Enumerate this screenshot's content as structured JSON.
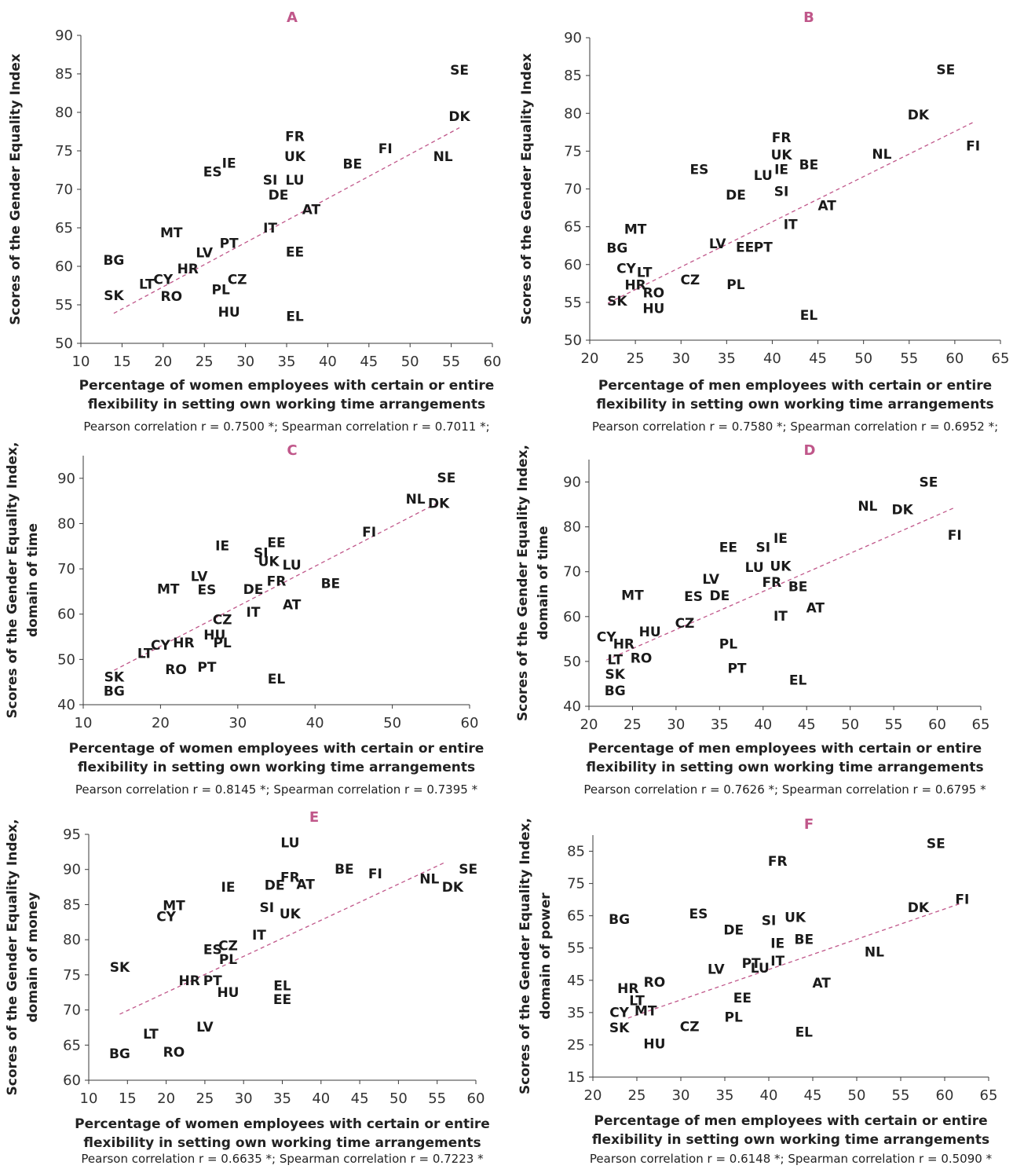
{
  "colors": {
    "panel_title": "#c0578a",
    "trendline": "#c0578a"
  },
  "chart_data": [
    {
      "panel": "A",
      "type": "scatter",
      "xlabel": [
        "Percentage of women employees with certain or entire",
        "flexibility in setting own working time arrangements"
      ],
      "ylabel": [
        "Scores of the Gender Equality Index"
      ],
      "correlation": "Pearson correlation r = 0.7500 *; Spearman correlation r = 0.7011 *;",
      "xlim": [
        10,
        60
      ],
      "xstep": 5,
      "ylim": [
        50,
        90
      ],
      "ystep": 5,
      "trend": {
        "x": [
          14,
          56
        ],
        "y": [
          53.9,
          78.0
        ]
      },
      "points": [
        {
          "label": "SE",
          "x": 56,
          "y": 85.5
        },
        {
          "label": "DK",
          "x": 56,
          "y": 79.5
        },
        {
          "label": "NL",
          "x": 54,
          "y": 74.3
        },
        {
          "label": "FI",
          "x": 47,
          "y": 75.3
        },
        {
          "label": "BE",
          "x": 43,
          "y": 73.3
        },
        {
          "label": "FR",
          "x": 36,
          "y": 76.9
        },
        {
          "label": "UK",
          "x": 36,
          "y": 74.3
        },
        {
          "label": "LU",
          "x": 36,
          "y": 71.2
        },
        {
          "label": "SI",
          "x": 33,
          "y": 71.2
        },
        {
          "label": "DE",
          "x": 34,
          "y": 69.3
        },
        {
          "label": "AT",
          "x": 38,
          "y": 67.4
        },
        {
          "label": "IT",
          "x": 33,
          "y": 65.0
        },
        {
          "label": "IE",
          "x": 28,
          "y": 73.4
        },
        {
          "label": "ES",
          "x": 26,
          "y": 72.3
        },
        {
          "label": "MT",
          "x": 21,
          "y": 64.4
        },
        {
          "label": "BG",
          "x": 14,
          "y": 60.8
        },
        {
          "label": "PT",
          "x": 28,
          "y": 63.0
        },
        {
          "label": "LV",
          "x": 25,
          "y": 61.8
        },
        {
          "label": "EE",
          "x": 36,
          "y": 61.9
        },
        {
          "label": "HR",
          "x": 23,
          "y": 59.7
        },
        {
          "label": "CY",
          "x": 20,
          "y": 58.3
        },
        {
          "label": "LT",
          "x": 18,
          "y": 57.7
        },
        {
          "label": "CZ",
          "x": 29,
          "y": 58.3
        },
        {
          "label": "PL",
          "x": 27,
          "y": 57.0
        },
        {
          "label": "SK",
          "x": 14,
          "y": 56.2
        },
        {
          "label": "RO",
          "x": 21,
          "y": 56.1
        },
        {
          "label": "HU",
          "x": 28,
          "y": 54.1
        },
        {
          "label": "EL",
          "x": 36,
          "y": 53.5
        }
      ]
    },
    {
      "panel": "B",
      "type": "scatter",
      "xlabel": [
        "Percentage of men employees with certain or entire",
        "flexibility in setting own working time arrangements"
      ],
      "ylabel": [
        "Scores of the Gender Equality Index"
      ],
      "correlation": "Pearson correlation r = 0.7580 *; Spearman correlation r = 0.6952 *;",
      "xlim": [
        20,
        65
      ],
      "xstep": 5,
      "ylim": [
        50,
        90
      ],
      "ystep": 5,
      "trend": {
        "x": [
          22,
          62
        ],
        "y": [
          54.9,
          78.8
        ]
      },
      "points": [
        {
          "label": "SE",
          "x": 59,
          "y": 85.8
        },
        {
          "label": "DK",
          "x": 56,
          "y": 79.8
        },
        {
          "label": "FI",
          "x": 62,
          "y": 75.7
        },
        {
          "label": "NL",
          "x": 52,
          "y": 74.6
        },
        {
          "label": "FR",
          "x": 41,
          "y": 76.8
        },
        {
          "label": "UK",
          "x": 41,
          "y": 74.5
        },
        {
          "label": "BE",
          "x": 44,
          "y": 73.2
        },
        {
          "label": "IE",
          "x": 41,
          "y": 72.6
        },
        {
          "label": "LU",
          "x": 39,
          "y": 71.8
        },
        {
          "label": "ES",
          "x": 32,
          "y": 72.6
        },
        {
          "label": "DE",
          "x": 36,
          "y": 69.2
        },
        {
          "label": "SI",
          "x": 41,
          "y": 69.7
        },
        {
          "label": "AT",
          "x": 46,
          "y": 67.8
        },
        {
          "label": "IT",
          "x": 42,
          "y": 65.3
        },
        {
          "label": "MT",
          "x": 25,
          "y": 64.7
        },
        {
          "label": "LV",
          "x": 34,
          "y": 62.8
        },
        {
          "label": "EE",
          "x": 37,
          "y": 62.3
        },
        {
          "label": "PT",
          "x": 39,
          "y": 62.3
        },
        {
          "label": "BG",
          "x": 23,
          "y": 62.2
        },
        {
          "label": "CY",
          "x": 24,
          "y": 59.5
        },
        {
          "label": "LT",
          "x": 26,
          "y": 59.0
        },
        {
          "label": "CZ",
          "x": 31,
          "y": 58.0
        },
        {
          "label": "HR",
          "x": 25,
          "y": 57.3
        },
        {
          "label": "PL",
          "x": 36,
          "y": 57.4
        },
        {
          "label": "RO",
          "x": 27,
          "y": 56.3
        },
        {
          "label": "SK",
          "x": 23,
          "y": 55.2
        },
        {
          "label": "HU",
          "x": 27,
          "y": 54.2
        },
        {
          "label": "EL",
          "x": 44,
          "y": 53.3
        }
      ]
    },
    {
      "panel": "C",
      "type": "scatter",
      "xlabel": [
        "Percentage of women employees with certain or entire",
        "flexibility in setting own working time arrangements"
      ],
      "ylabel": [
        "Scores of the Gender Equality Index,",
        "domain of time"
      ],
      "correlation": "Pearson correlation r = 0.8145 *; Spearman correlation r = 0.7395 *",
      "xlim": [
        10,
        60
      ],
      "xstep": 10,
      "ylim": [
        40,
        95
      ],
      "ystep": 10,
      "trend": {
        "x": [
          14,
          56
        ],
        "y": [
          47.6,
          84.7
        ]
      },
      "points": [
        {
          "label": "SE",
          "x": 57,
          "y": 90.1
        },
        {
          "label": "NL",
          "x": 53,
          "y": 85.5
        },
        {
          "label": "DK",
          "x": 56,
          "y": 84.5
        },
        {
          "label": "FI",
          "x": 47,
          "y": 78.2
        },
        {
          "label": "IE",
          "x": 28,
          "y": 75.1
        },
        {
          "label": "SI",
          "x": 33,
          "y": 73.6
        },
        {
          "label": "EE",
          "x": 35,
          "y": 75.8
        },
        {
          "label": "UK",
          "x": 34,
          "y": 71.7
        },
        {
          "label": "LU",
          "x": 37,
          "y": 70.9
        },
        {
          "label": "LV",
          "x": 25,
          "y": 68.4
        },
        {
          "label": "MT",
          "x": 21,
          "y": 65.6
        },
        {
          "label": "ES",
          "x": 26,
          "y": 65.4
        },
        {
          "label": "DE",
          "x": 32,
          "y": 65.5
        },
        {
          "label": "FR",
          "x": 35,
          "y": 67.3
        },
        {
          "label": "BE",
          "x": 42,
          "y": 66.8
        },
        {
          "label": "AT",
          "x": 37,
          "y": 62.1
        },
        {
          "label": "IT",
          "x": 32,
          "y": 60.5
        },
        {
          "label": "CZ",
          "x": 28,
          "y": 58.8
        },
        {
          "label": "HU",
          "x": 27,
          "y": 55.4
        },
        {
          "label": "PL",
          "x": 28,
          "y": 53.7
        },
        {
          "label": "HR",
          "x": 23,
          "y": 53.7
        },
        {
          "label": "CY",
          "x": 20,
          "y": 53.2
        },
        {
          "label": "LT",
          "x": 18,
          "y": 51.4
        },
        {
          "label": "RO",
          "x": 22,
          "y": 47.8
        },
        {
          "label": "PT",
          "x": 26,
          "y": 48.3
        },
        {
          "label": "SK",
          "x": 14,
          "y": 46.2
        },
        {
          "label": "BG",
          "x": 14,
          "y": 43.0
        },
        {
          "label": "EL",
          "x": 35,
          "y": 45.7
        }
      ]
    },
    {
      "panel": "D",
      "type": "scatter",
      "xlabel": [
        "Percentage of men employees with certain or entire",
        "flexibility in setting own working time arrangements"
      ],
      "ylabel": [
        "Scores of the Gender Equality Index,",
        "domain of time"
      ],
      "correlation": "Pearson correlation r = 0.7626 *; Spearman correlation r = 0.6795 *",
      "xlim": [
        20,
        65
      ],
      "xstep": 5,
      "ylim": [
        40,
        95
      ],
      "ystep": 10,
      "trend": {
        "x": [
          22,
          62
        ],
        "y": [
          50.3,
          84.3
        ]
      },
      "points": [
        {
          "label": "SE",
          "x": 59,
          "y": 90.0
        },
        {
          "label": "NL",
          "x": 52,
          "y": 84.7
        },
        {
          "label": "DK",
          "x": 56,
          "y": 83.9
        },
        {
          "label": "FI",
          "x": 62,
          "y": 78.2
        },
        {
          "label": "EE",
          "x": 36,
          "y": 75.5
        },
        {
          "label": "SI",
          "x": 40,
          "y": 75.5
        },
        {
          "label": "IE",
          "x": 42,
          "y": 77.5
        },
        {
          "label": "LU",
          "x": 39,
          "y": 71.0
        },
        {
          "label": "UK",
          "x": 42,
          "y": 71.3
        },
        {
          "label": "LV",
          "x": 34,
          "y": 68.4
        },
        {
          "label": "FR",
          "x": 41,
          "y": 67.7
        },
        {
          "label": "BE",
          "x": 44,
          "y": 66.7
        },
        {
          "label": "MT",
          "x": 25,
          "y": 64.8
        },
        {
          "label": "ES",
          "x": 32,
          "y": 64.5
        },
        {
          "label": "DE",
          "x": 35,
          "y": 64.7
        },
        {
          "label": "AT",
          "x": 46,
          "y": 62.0
        },
        {
          "label": "IT",
          "x": 42,
          "y": 60.1
        },
        {
          "label": "CZ",
          "x": 31,
          "y": 58.6
        },
        {
          "label": "HU",
          "x": 27,
          "y": 56.6
        },
        {
          "label": "CY",
          "x": 22,
          "y": 55.5
        },
        {
          "label": "HR",
          "x": 24,
          "y": 53.9
        },
        {
          "label": "PL",
          "x": 36,
          "y": 53.9
        },
        {
          "label": "LT",
          "x": 23,
          "y": 50.4
        },
        {
          "label": "RO",
          "x": 26,
          "y": 50.8
        },
        {
          "label": "PT",
          "x": 37,
          "y": 48.5
        },
        {
          "label": "SK",
          "x": 23,
          "y": 47.2
        },
        {
          "label": "BG",
          "x": 23,
          "y": 43.5
        },
        {
          "label": "EL",
          "x": 44,
          "y": 45.9
        }
      ]
    },
    {
      "panel": "E",
      "type": "scatter",
      "xlabel": [
        "Percentage of women employees with certain or entire",
        "flexibility in setting own working time arrangements"
      ],
      "ylabel": [
        "Scores of the Gender Equality Index,",
        "domain of money"
      ],
      "correlation": "Pearson correlation r = 0.6635 *; Spearman correlation r = 0.7223 *",
      "xlim": [
        10,
        60
      ],
      "xstep": 5,
      "ylim": [
        60,
        95
      ],
      "ystep": 5,
      "trend": {
        "x": [
          14,
          56
        ],
        "y": [
          69.4,
          91.0
        ]
      },
      "points": [
        {
          "label": "LU",
          "x": 36,
          "y": 93.8
        },
        {
          "label": "BE",
          "x": 43,
          "y": 90.1
        },
        {
          "label": "FI",
          "x": 47,
          "y": 89.4
        },
        {
          "label": "SE",
          "x": 59,
          "y": 90.1
        },
        {
          "label": "NL",
          "x": 54,
          "y": 88.7
        },
        {
          "label": "DK",
          "x": 57,
          "y": 87.5
        },
        {
          "label": "FR",
          "x": 36,
          "y": 88.9
        },
        {
          "label": "DE",
          "x": 34,
          "y": 87.8
        },
        {
          "label": "AT",
          "x": 38,
          "y": 87.9
        },
        {
          "label": "IE",
          "x": 28,
          "y": 87.5
        },
        {
          "label": "SI",
          "x": 33,
          "y": 84.6
        },
        {
          "label": "UK",
          "x": 36,
          "y": 83.7
        },
        {
          "label": "MT",
          "x": 21,
          "y": 84.9
        },
        {
          "label": "CY",
          "x": 20,
          "y": 83.3
        },
        {
          "label": "IT",
          "x": 32,
          "y": 80.7
        },
        {
          "label": "ES",
          "x": 26,
          "y": 78.6
        },
        {
          "label": "CZ",
          "x": 28,
          "y": 79.2
        },
        {
          "label": "PL",
          "x": 28,
          "y": 77.2
        },
        {
          "label": "SK",
          "x": 14,
          "y": 76.1
        },
        {
          "label": "HR",
          "x": 23,
          "y": 74.2
        },
        {
          "label": "PT",
          "x": 26,
          "y": 74.2
        },
        {
          "label": "HU",
          "x": 28,
          "y": 72.5
        },
        {
          "label": "EL",
          "x": 35,
          "y": 73.5
        },
        {
          "label": "EE",
          "x": 35,
          "y": 71.5
        },
        {
          "label": "LV",
          "x": 25,
          "y": 67.6
        },
        {
          "label": "LT",
          "x": 18,
          "y": 66.6
        },
        {
          "label": "BG",
          "x": 14,
          "y": 63.8
        },
        {
          "label": "RO",
          "x": 21,
          "y": 64.0
        }
      ]
    },
    {
      "panel": "F",
      "type": "scatter",
      "xlabel": [
        "Percentage of men employees with certain or entire",
        "flexibility in setting own working time arrangements"
      ],
      "ylabel": [
        "Scores of the Gender Equality Index,",
        "domain of power"
      ],
      "correlation": "Pearson correlation r = 0.6148 *; Spearman correlation r = 0.5090 *",
      "xlim": [
        20,
        65
      ],
      "xstep": 5,
      "ylim": [
        15,
        90
      ],
      "ystep": 10,
      "ytick_values": [
        15,
        25,
        35,
        45,
        55,
        65,
        75,
        85
      ],
      "trend": {
        "x": [
          24,
          62
        ],
        "y": [
          33.3,
          69.0
        ]
      },
      "points": [
        {
          "label": "SE",
          "x": 59,
          "y": 87.5
        },
        {
          "label": "FR",
          "x": 41,
          "y": 82.0
        },
        {
          "label": "FI",
          "x": 62,
          "y": 70.2
        },
        {
          "label": "DK",
          "x": 57,
          "y": 67.6
        },
        {
          "label": "BG",
          "x": 23,
          "y": 64.0
        },
        {
          "label": "ES",
          "x": 32,
          "y": 65.6
        },
        {
          "label": "UK",
          "x": 43,
          "y": 64.6
        },
        {
          "label": "SI",
          "x": 40,
          "y": 63.6
        },
        {
          "label": "DE",
          "x": 36,
          "y": 60.7
        },
        {
          "label": "BE",
          "x": 44,
          "y": 57.7
        },
        {
          "label": "IE",
          "x": 41,
          "y": 56.5
        },
        {
          "label": "NL",
          "x": 52,
          "y": 53.8
        },
        {
          "label": "IT",
          "x": 41,
          "y": 51.0
        },
        {
          "label": "PT",
          "x": 38,
          "y": 50.3
        },
        {
          "label": "LU",
          "x": 39,
          "y": 48.9
        },
        {
          "label": "LV",
          "x": 34,
          "y": 48.5
        },
        {
          "label": "RO",
          "x": 27,
          "y": 44.5
        },
        {
          "label": "AT",
          "x": 46,
          "y": 44.2
        },
        {
          "label": "HR",
          "x": 24,
          "y": 42.5
        },
        {
          "label": "LT",
          "x": 25,
          "y": 38.7
        },
        {
          "label": "EE",
          "x": 37,
          "y": 39.6
        },
        {
          "label": "CY",
          "x": 23,
          "y": 35.1
        },
        {
          "label": "MT",
          "x": 26,
          "y": 35.6
        },
        {
          "label": "PL",
          "x": 36,
          "y": 33.6
        },
        {
          "label": "CZ",
          "x": 31,
          "y": 30.7
        },
        {
          "label": "SK",
          "x": 23,
          "y": 30.3
        },
        {
          "label": "EL",
          "x": 44,
          "y": 29.0
        },
        {
          "label": "HU",
          "x": 27,
          "y": 25.3
        }
      ]
    }
  ]
}
